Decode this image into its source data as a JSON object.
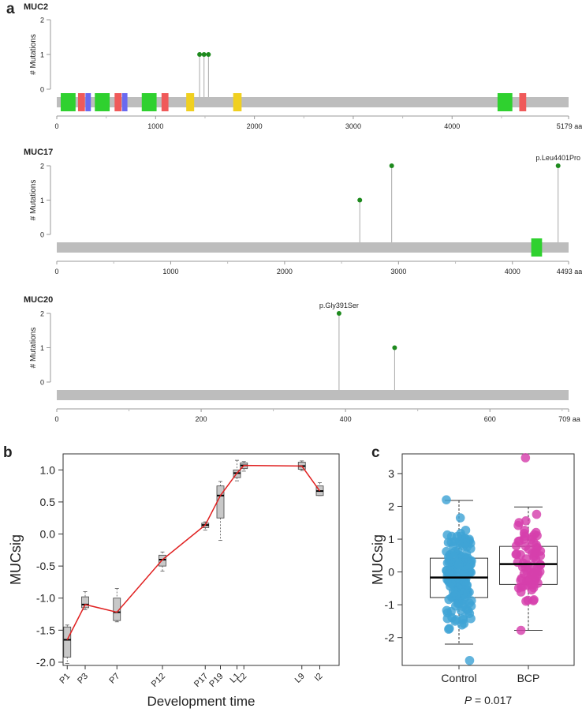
{
  "panel_labels": {
    "a": "a",
    "b": "b",
    "c": "c"
  },
  "colors": {
    "backbone": "#bdbdbd",
    "stem": "#a8a8a8",
    "mutation": "#1e8a1e",
    "domain_green": "#2fd12f",
    "domain_red": "#f05a5a",
    "domain_blue": "#6a6af0",
    "domain_yellow": "#f0d020",
    "trend_line": "#e02020",
    "box_fill_b": "#c8c8c8",
    "control": "#3fa4d6",
    "bcp": "#d640ac"
  },
  "chart_data": [
    {
      "type": "lollipop",
      "gene": "MUC2",
      "ylabel": "# Mutations",
      "yticks": [
        0,
        1,
        2
      ],
      "length": 5179,
      "xticks": [
        0,
        1000,
        2000,
        3000,
        4000
      ],
      "end_label": "5179 aa",
      "domains": [
        {
          "start": 40,
          "end": 190,
          "color": "green"
        },
        {
          "start": 215,
          "end": 285,
          "color": "red"
        },
        {
          "start": 290,
          "end": 345,
          "color": "blue"
        },
        {
          "start": 385,
          "end": 535,
          "color": "green"
        },
        {
          "start": 585,
          "end": 655,
          "color": "red"
        },
        {
          "start": 660,
          "end": 715,
          "color": "blue"
        },
        {
          "start": 860,
          "end": 1010,
          "color": "green"
        },
        {
          "start": 1060,
          "end": 1130,
          "color": "red"
        },
        {
          "start": 1310,
          "end": 1390,
          "color": "yellow"
        },
        {
          "start": 1785,
          "end": 1870,
          "color": "yellow"
        },
        {
          "start": 4460,
          "end": 4610,
          "color": "green"
        },
        {
          "start": 4680,
          "end": 4750,
          "color": "red"
        }
      ],
      "mutations": [
        {
          "position": 1445,
          "count": 1
        },
        {
          "position": 1490,
          "count": 1
        },
        {
          "position": 1535,
          "count": 1
        }
      ]
    },
    {
      "type": "lollipop",
      "gene": "MUC17",
      "ylabel": "# Mutations",
      "yticks": [
        0,
        1,
        2
      ],
      "length": 4493,
      "xticks": [
        0,
        1000,
        2000,
        3000,
        4000
      ],
      "end_label": "4493 aa",
      "domains": [
        {
          "start": 4165,
          "end": 4260,
          "color": "green"
        }
      ],
      "mutations": [
        {
          "position": 2660,
          "count": 1
        },
        {
          "position": 2940,
          "count": 2
        },
        {
          "position": 4401,
          "count": 2,
          "label": "p.Leu4401Pro"
        }
      ]
    },
    {
      "type": "lollipop",
      "gene": "MUC20",
      "ylabel": "# Mutations",
      "yticks": [
        0,
        1,
        2
      ],
      "length": 709,
      "xticks": [
        0,
        200,
        400,
        600
      ],
      "end_label": "709 aa",
      "domains": [],
      "mutations": [
        {
          "position": 391,
          "count": 2,
          "label": "p.Gly391Ser"
        },
        {
          "position": 468,
          "count": 1
        }
      ]
    },
    {
      "type": "box",
      "xlabel": "Development time",
      "ylabel": "MUCsig",
      "yticks": [
        -2.0,
        -1.5,
        -1.0,
        -0.5,
        0.0,
        0.5,
        1.0
      ],
      "ytick_labels": [
        "-2.0",
        "-1.5",
        "-1.0",
        "-0.5",
        "0.0",
        "0.5",
        "1.0"
      ],
      "ylim": [
        -2.05,
        1.25
      ],
      "xlim": [
        0,
        100
      ],
      "groups": [
        {
          "name": "P1",
          "x": 1.5,
          "min": -2.02,
          "q1": -1.92,
          "median": -1.65,
          "q3": -1.45,
          "max": -1.42
        },
        {
          "name": "P3",
          "x": 8.0,
          "min": -1.18,
          "q1": -1.15,
          "median": -1.1,
          "q3": -0.98,
          "max": -0.9
        },
        {
          "name": "P7",
          "x": 19.5,
          "min": -1.37,
          "q1": -1.35,
          "median": -1.22,
          "q3": -1.0,
          "max": -0.85
        },
        {
          "name": "P12",
          "x": 36.0,
          "min": -0.58,
          "q1": -0.5,
          "median": -0.4,
          "q3": -0.33,
          "max": -0.28
        },
        {
          "name": "P17",
          "x": 51.5,
          "min": 0.06,
          "q1": 0.1,
          "median": 0.14,
          "q3": 0.17,
          "max": 0.19
        },
        {
          "name": "P19",
          "x": 57.0,
          "min": -0.1,
          "q1": 0.25,
          "median": 0.6,
          "q3": 0.75,
          "max": 0.82
        },
        {
          "name": "L1",
          "x": 63.0,
          "min": 0.83,
          "q1": 0.88,
          "median": 0.95,
          "q3": 1.0,
          "max": 1.15
        },
        {
          "name": "L2",
          "x": 65.5,
          "min": 0.98,
          "q1": 1.02,
          "median": 1.07,
          "q3": 1.11,
          "max": 1.13
        },
        {
          "name": "L9",
          "x": 86.5,
          "min": 0.99,
          "q1": 1.01,
          "median": 1.06,
          "q3": 1.12,
          "max": 1.14
        },
        {
          "name": "I2",
          "x": 93.0,
          "min": 0.6,
          "q1": 0.6,
          "median": 0.67,
          "q3": 0.75,
          "max": 0.8
        }
      ]
    },
    {
      "type": "box_jitter",
      "ylabel": "MUCsig",
      "yticks": [
        -2,
        -1,
        0,
        1,
        2,
        3
      ],
      "ylim": [
        -2.85,
        3.6
      ],
      "groups": [
        {
          "name": "Control",
          "q1": -0.78,
          "median": -0.17,
          "q3": 0.42,
          "whisker_low": -2.2,
          "whisker_high": 2.18,
          "n_points": 180,
          "point_min": -2.7,
          "point_max": 2.2
        },
        {
          "name": "BCP",
          "q1": -0.38,
          "median": 0.24,
          "q3": 0.78,
          "whisker_low": -1.78,
          "whisker_high": 1.98,
          "n_points": 75,
          "point_min": -1.78,
          "point_max": 3.48
        }
      ],
      "p_value_prefix": "P",
      "p_value_text": " = 0.017"
    }
  ]
}
